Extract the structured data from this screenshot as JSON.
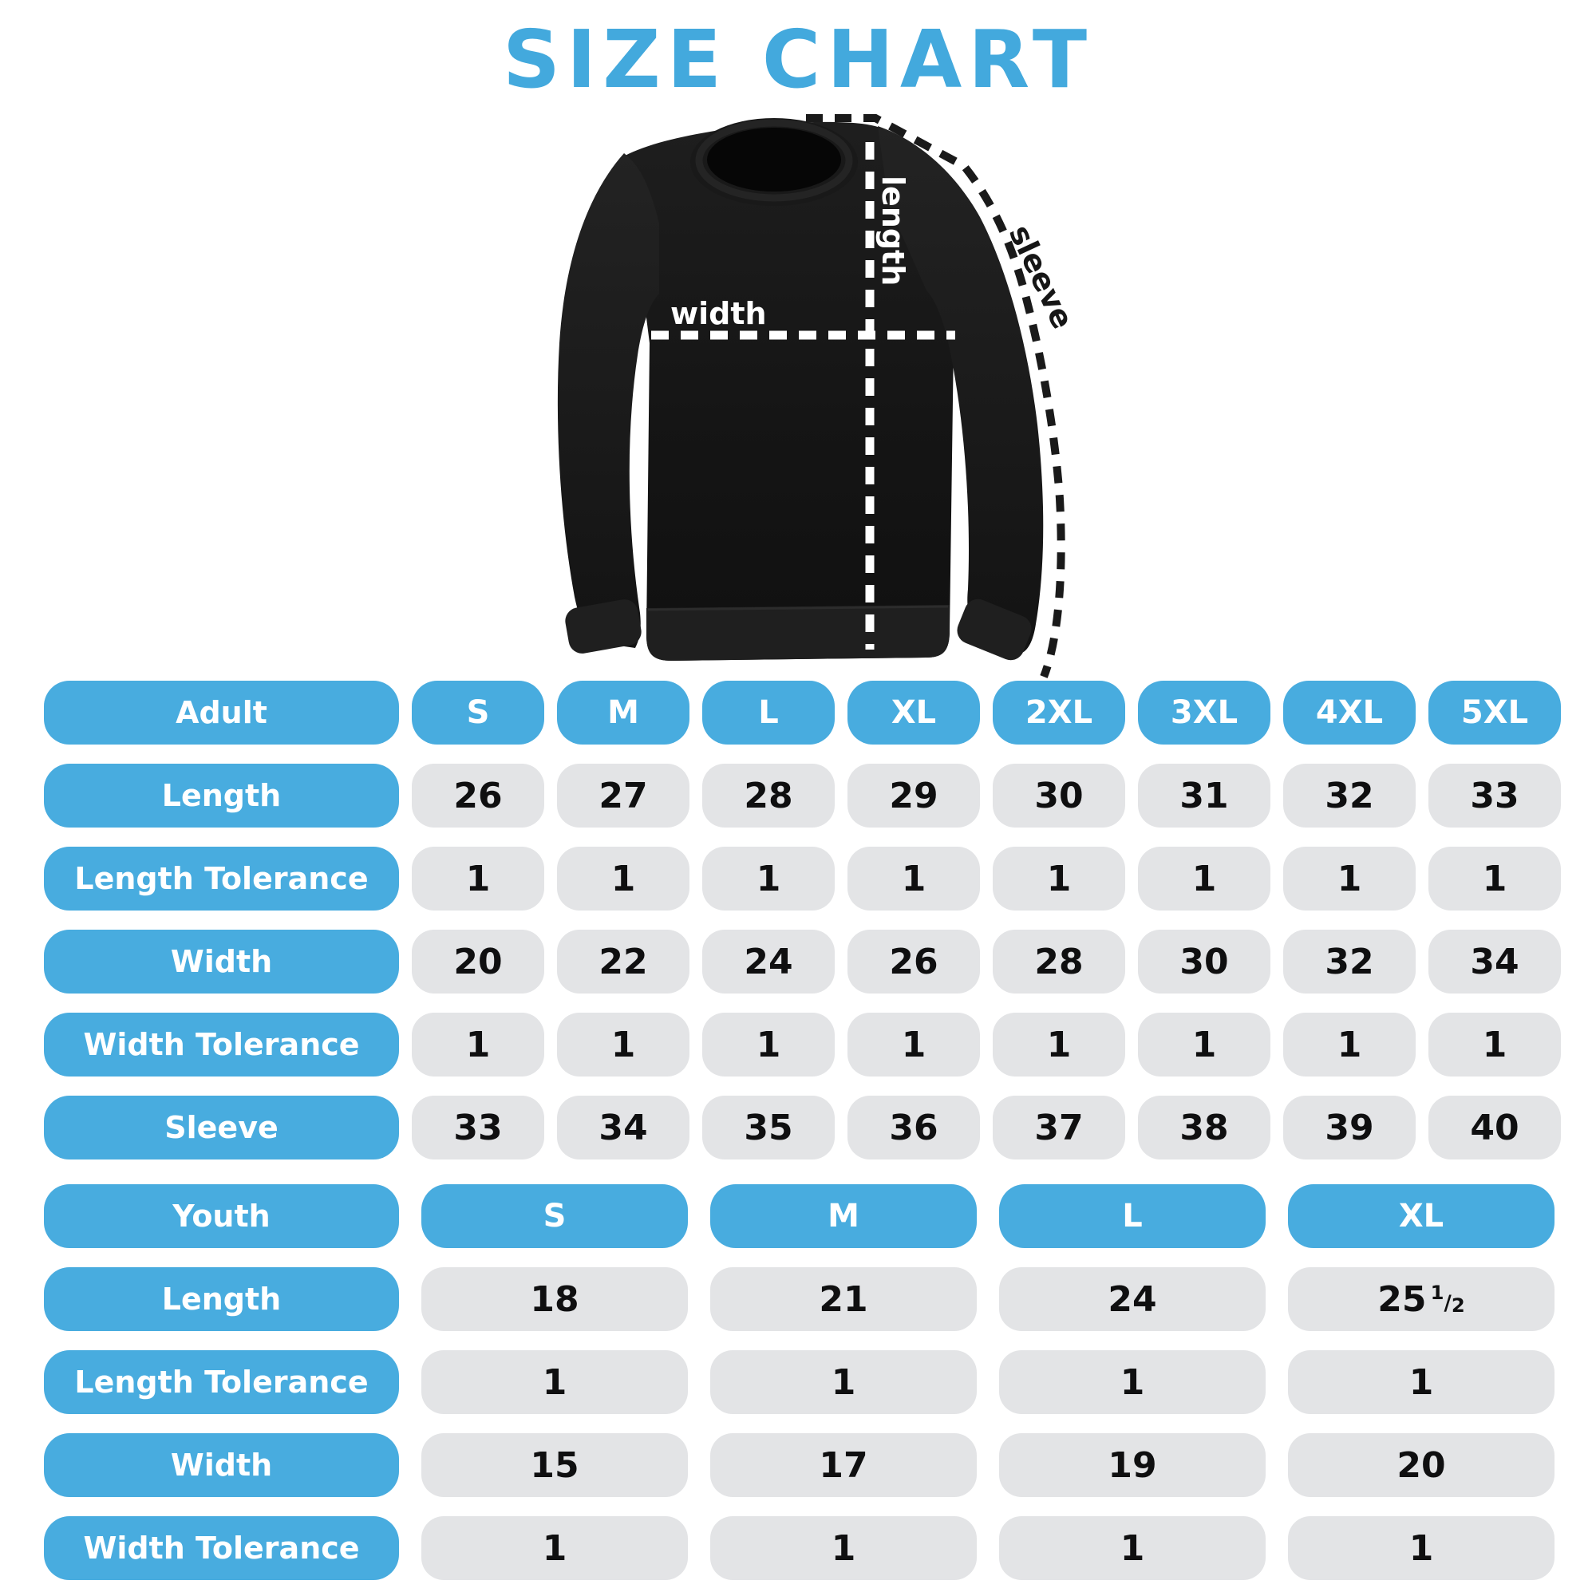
{
  "title": "SIZE CHART",
  "colors": {
    "accent_blue": "#43A9DD",
    "pill_blue": "#48ACDF",
    "pill_grey": "#E3E4E6",
    "value_text": "#0F0F10",
    "garment_black": "#161616"
  },
  "diagram": {
    "length_label": "length",
    "width_label": "width",
    "sleeve_label": "sleeve"
  },
  "adult": {
    "header_label": "Adult",
    "sizes": [
      "S",
      "M",
      "L",
      "XL",
      "2XL",
      "3XL",
      "4XL",
      "5XL"
    ],
    "rows": [
      {
        "label": "Length",
        "values": [
          "26",
          "27",
          "28",
          "29",
          "30",
          "31",
          "32",
          "33"
        ]
      },
      {
        "label": "Length Tolerance",
        "values": [
          "1",
          "1",
          "1",
          "1",
          "1",
          "1",
          "1",
          "1"
        ]
      },
      {
        "label": "Width",
        "values": [
          "20",
          "22",
          "24",
          "26",
          "28",
          "30",
          "32",
          "34"
        ]
      },
      {
        "label": "Width Tolerance",
        "values": [
          "1",
          "1",
          "1",
          "1",
          "1",
          "1",
          "1",
          "1"
        ]
      },
      {
        "label": "Sleeve",
        "values": [
          "33",
          "34",
          "35",
          "36",
          "37",
          "38",
          "39",
          "40"
        ]
      }
    ]
  },
  "youth": {
    "header_label": "Youth",
    "sizes": [
      "S",
      "M",
      "L",
      "XL"
    ],
    "rows": [
      {
        "label": "Length",
        "values": [
          "18",
          "21",
          "24",
          "25 1/2"
        ]
      },
      {
        "label": "Length Tolerance",
        "values": [
          "1",
          "1",
          "1",
          "1"
        ]
      },
      {
        "label": "Width",
        "values": [
          "15",
          "17",
          "19",
          "20"
        ]
      },
      {
        "label": "Width Tolerance",
        "values": [
          "1",
          "1",
          "1",
          "1"
        ]
      }
    ]
  }
}
